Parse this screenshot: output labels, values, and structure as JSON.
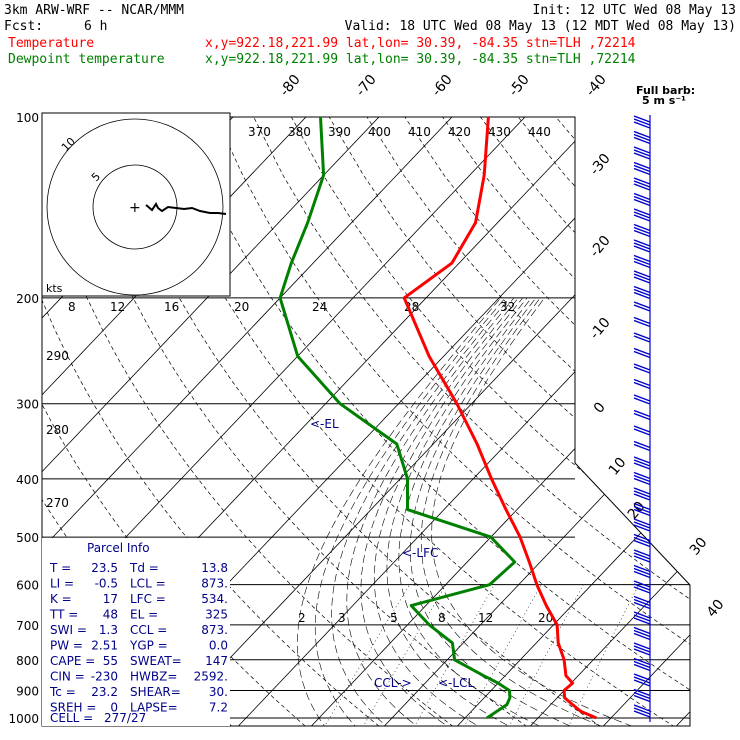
{
  "header": {
    "model": "3km ARW-WRF -- NCAR/MMM",
    "init": "Init: 12 UTC Wed 08 May 13",
    "fcst_label": "Fcst:",
    "fcst_value": "6 h",
    "valid": "Valid: 18 UTC Wed 08 May 13 (12 MDT Wed 08 May 13)",
    "temp_label": "Temperature",
    "temp_info": "x,y=922.18,221.99   lat,lon= 30.39, -84.35   stn=TLH ,72214",
    "dew_label": "Dewpoint temperature",
    "dew_info": "x,y=922.18,221.99   lat,lon= 30.39, -84.35   stn=TLH ,72214",
    "temp_color": "#ff0000",
    "dew_color": "#008000"
  },
  "wind_legend": {
    "line1": "Full barb:",
    "line2": "5 m s⁻¹"
  },
  "hodograph": {
    "ring_labels": [
      "5",
      "10"
    ],
    "kts_label": "kts"
  },
  "parcel_info": {
    "title": "Parcel Info",
    "rows": [
      {
        "l1": "T  =",
        "v1": "23.5",
        "l2": "Td =",
        "v2": "13.8"
      },
      {
        "l1": "LI =",
        "v1": "-0.5",
        "l2": "LCL =",
        "v2": "873."
      },
      {
        "l1": "K  =",
        "v1": "17",
        "l2": "LFC =",
        "v2": "534."
      },
      {
        "l1": "TT =",
        "v1": "48",
        "l2": "EL  =",
        "v2": "325"
      },
      {
        "l1": "SWI =",
        "v1": "1.3",
        "l2": "CCL =",
        "v2": "873."
      },
      {
        "l1": "PW =",
        "v1": "2.51",
        "l2": "YGP =",
        "v2": "0.0"
      },
      {
        "l1": "CAPE =",
        "v1": "55",
        "l2": "SWEAT=",
        "v2": "147"
      },
      {
        "l1": "CIN =",
        "v1": "-230",
        "l2": "HWBZ=",
        "v2": "2592."
      },
      {
        "l1": "Tc =",
        "v1": "23.2",
        "l2": "SHEAR=",
        "v2": "30."
      },
      {
        "l1": "SREH =",
        "v1": "0",
        "l2": "LAPSE=",
        "v2": "7.2"
      }
    ],
    "cell_label": "CELL =",
    "cell_value": "277/27"
  },
  "level_labels": {
    "el": "<-EL",
    "lfc": "<-LFC",
    "ccl": "CCL->",
    "lcl": "<-LCL"
  },
  "chart_data": {
    "type": "line",
    "pressure_levels": [
      100,
      200,
      300,
      400,
      500,
      600,
      700,
      800,
      900,
      1000
    ],
    "isotherm_labels": [
      -80,
      -70,
      -60,
      -50,
      -40,
      -30,
      -20,
      -10,
      0,
      10,
      20,
      30,
      40
    ],
    "theta_labels": [
      370,
      380,
      390,
      400,
      410,
      420,
      430,
      440
    ],
    "theta_e_labels": [
      8,
      12,
      16,
      20,
      24,
      28,
      32
    ],
    "mixing_ratio_labels": [
      2,
      3,
      5,
      8,
      12,
      20
    ],
    "low_theta_labels": [
      290,
      280,
      270
    ],
    "series": [
      {
        "name": "Temperature",
        "color": "#ff0000",
        "points": [
          [
            1000,
            28.0
          ],
          [
            975,
            25.0
          ],
          [
            950,
            23.0
          ],
          [
            925,
            21.0
          ],
          [
            900,
            20.0
          ],
          [
            875,
            20.2
          ],
          [
            850,
            18.3
          ],
          [
            800,
            16.0
          ],
          [
            750,
            13.0
          ],
          [
            700,
            10.5
          ],
          [
            650,
            6.5
          ],
          [
            600,
            2.5
          ],
          [
            550,
            -1.5
          ],
          [
            500,
            -6.0
          ],
          [
            450,
            -11.5
          ],
          [
            400,
            -17.5
          ],
          [
            350,
            -24.0
          ],
          [
            300,
            -32.0
          ],
          [
            250,
            -42.0
          ],
          [
            200,
            -53.0
          ],
          [
            175,
            -51.0
          ],
          [
            150,
            -53.0
          ],
          [
            125,
            -58.0
          ],
          [
            100,
            -65.0
          ]
        ]
      },
      {
        "name": "Dewpoint temperature",
        "color": "#008000",
        "points": [
          [
            1000,
            13.0
          ],
          [
            975,
            13.5
          ],
          [
            950,
            14.0
          ],
          [
            925,
            13.5
          ],
          [
            900,
            12.5
          ],
          [
            875,
            10.0
          ],
          [
            850,
            7.0
          ],
          [
            800,
            1.0
          ],
          [
            750,
            -1.5
          ],
          [
            700,
            -7.0
          ],
          [
            650,
            -12.0
          ],
          [
            600,
            -4.0
          ],
          [
            550,
            -3.5
          ],
          [
            500,
            -10.0
          ],
          [
            450,
            -25.0
          ],
          [
            400,
            -29.0
          ],
          [
            350,
            -35.0
          ],
          [
            300,
            -48.0
          ],
          [
            250,
            -60.0
          ],
          [
            200,
            -70.0
          ],
          [
            175,
            -73.0
          ],
          [
            150,
            -76.0
          ],
          [
            125,
            -80.0
          ],
          [
            100,
            -88.0
          ]
        ]
      }
    ],
    "wind_barbs_color": "#0000cc",
    "hodograph_color": "#000000",
    "xlabel": "",
    "ylabel": ""
  }
}
